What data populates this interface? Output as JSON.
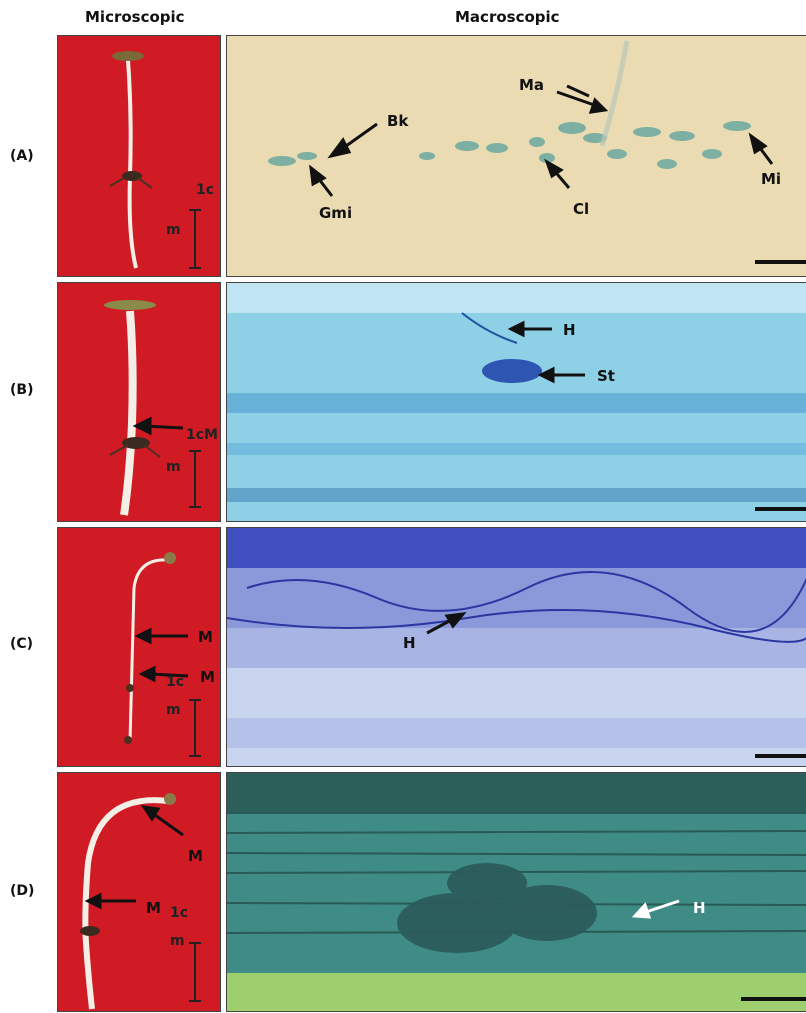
{
  "headers": {
    "left": "Microscopic",
    "right": "Macroscopic"
  },
  "rows": [
    {
      "label": "(A)",
      "scale": [
        "1c",
        "m"
      ],
      "annotations": [
        "Bk",
        "Gmi",
        "Ma",
        "Cl",
        "Mi"
      ]
    },
    {
      "label": "(B)",
      "scale": [
        "1cM",
        "m"
      ],
      "annotations": [
        "H",
        "St"
      ]
    },
    {
      "label": "(C)",
      "scale": [
        "1c",
        "m"
      ],
      "left_marks": [
        "M",
        "M"
      ],
      "annotations": [
        "H"
      ]
    },
    {
      "label": "(D)",
      "scale": [
        "1c",
        "m"
      ],
      "left_marks": [
        "M",
        "M"
      ],
      "annotations": [
        "H"
      ]
    }
  ],
  "colors": {
    "seedling_background": "#d01a24",
    "panel_a_background": "#eadbb2",
    "panel_b_background": "#8ed0e6",
    "panel_c_background": "#c9d4ee",
    "panel_d_background": "#3f8c86"
  }
}
